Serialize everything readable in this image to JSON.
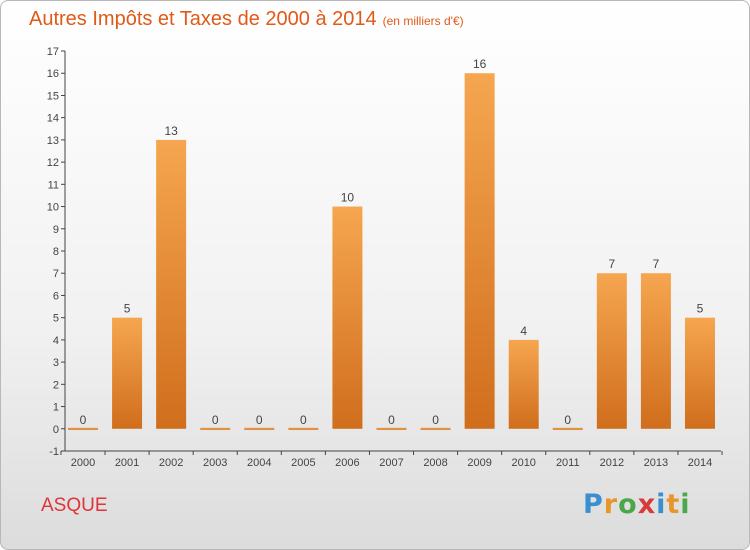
{
  "title": {
    "main": "Autres Impôts et Taxes de 2000 à 2014",
    "unit": "(en milliers d'€)"
  },
  "commune": "ASQUE",
  "logo": {
    "text": "Proxiti",
    "letters": [
      {
        "ch": "P",
        "color": "#3a8fd0"
      },
      {
        "ch": "r",
        "color": "#e8962c"
      },
      {
        "ch": "o",
        "color": "#4aa84a"
      },
      {
        "ch": "x",
        "color": "#d63a3a"
      },
      {
        "ch": "i",
        "color": "#3a8fd0"
      },
      {
        "ch": "t",
        "color": "#e8962c"
      },
      {
        "ch": "i",
        "color": "#4aa84a"
      }
    ]
  },
  "colors": {
    "title": "#e05a17",
    "commune": "#e0333a",
    "bar_top": "#f6a650",
    "bar_bottom": "#d06e1c",
    "axis": "#444444"
  },
  "chart_data": {
    "type": "bar",
    "categories": [
      "2000",
      "2001",
      "2002",
      "2003",
      "2004",
      "2005",
      "2006",
      "2007",
      "2008",
      "2009",
      "2010",
      "2011",
      "2012",
      "2013",
      "2014"
    ],
    "values": [
      0,
      5,
      13,
      0,
      0,
      0,
      10,
      0,
      0,
      16,
      4,
      0,
      7,
      7,
      5
    ],
    "ylim": [
      -1,
      17
    ],
    "yticks": [
      -1,
      0,
      1,
      2,
      3,
      4,
      5,
      6,
      7,
      8,
      9,
      10,
      11,
      12,
      13,
      14,
      15,
      16,
      17
    ],
    "grid": false,
    "legend": "none"
  }
}
